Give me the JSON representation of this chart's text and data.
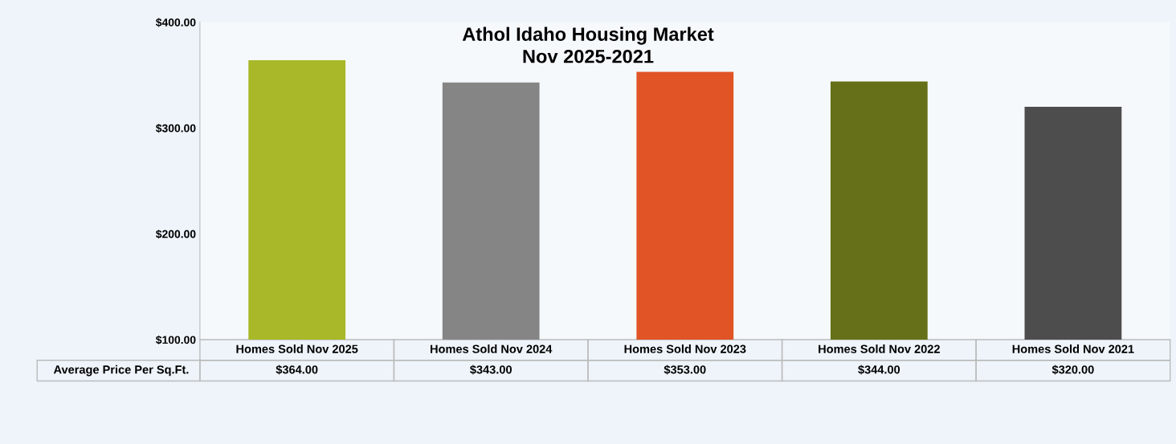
{
  "chart_data": {
    "type": "bar",
    "title": "Athol Idaho Housing Market",
    "subtitle": "Nov 2025-2021",
    "categories": [
      "Homes Sold Nov 2025",
      "Homes Sold Nov 2024",
      "Homes Sold Nov 2023",
      "Homes Sold Nov 2022",
      "Homes Sold Nov 2021"
    ],
    "series": [
      {
        "name": "Average Price Per Sq.Ft.",
        "values": [
          364,
          343,
          353,
          344,
          320
        ],
        "colors": [
          "#a8b828",
          "#858585",
          "#e05426",
          "#667018",
          "#4d4d4d"
        ],
        "value_labels": [
          "$364.00",
          "$343.00",
          "$353.00",
          "$344.00",
          "$320.00"
        ]
      }
    ],
    "ylim": [
      100,
      400
    ],
    "yticks": [
      {
        "value": 100,
        "label": "$100.00"
      },
      {
        "value": 200,
        "label": "$200.00"
      },
      {
        "value": 300,
        "label": "$300.00"
      },
      {
        "value": 400,
        "label": "$400.00"
      }
    ],
    "grid": false,
    "legend": false
  }
}
